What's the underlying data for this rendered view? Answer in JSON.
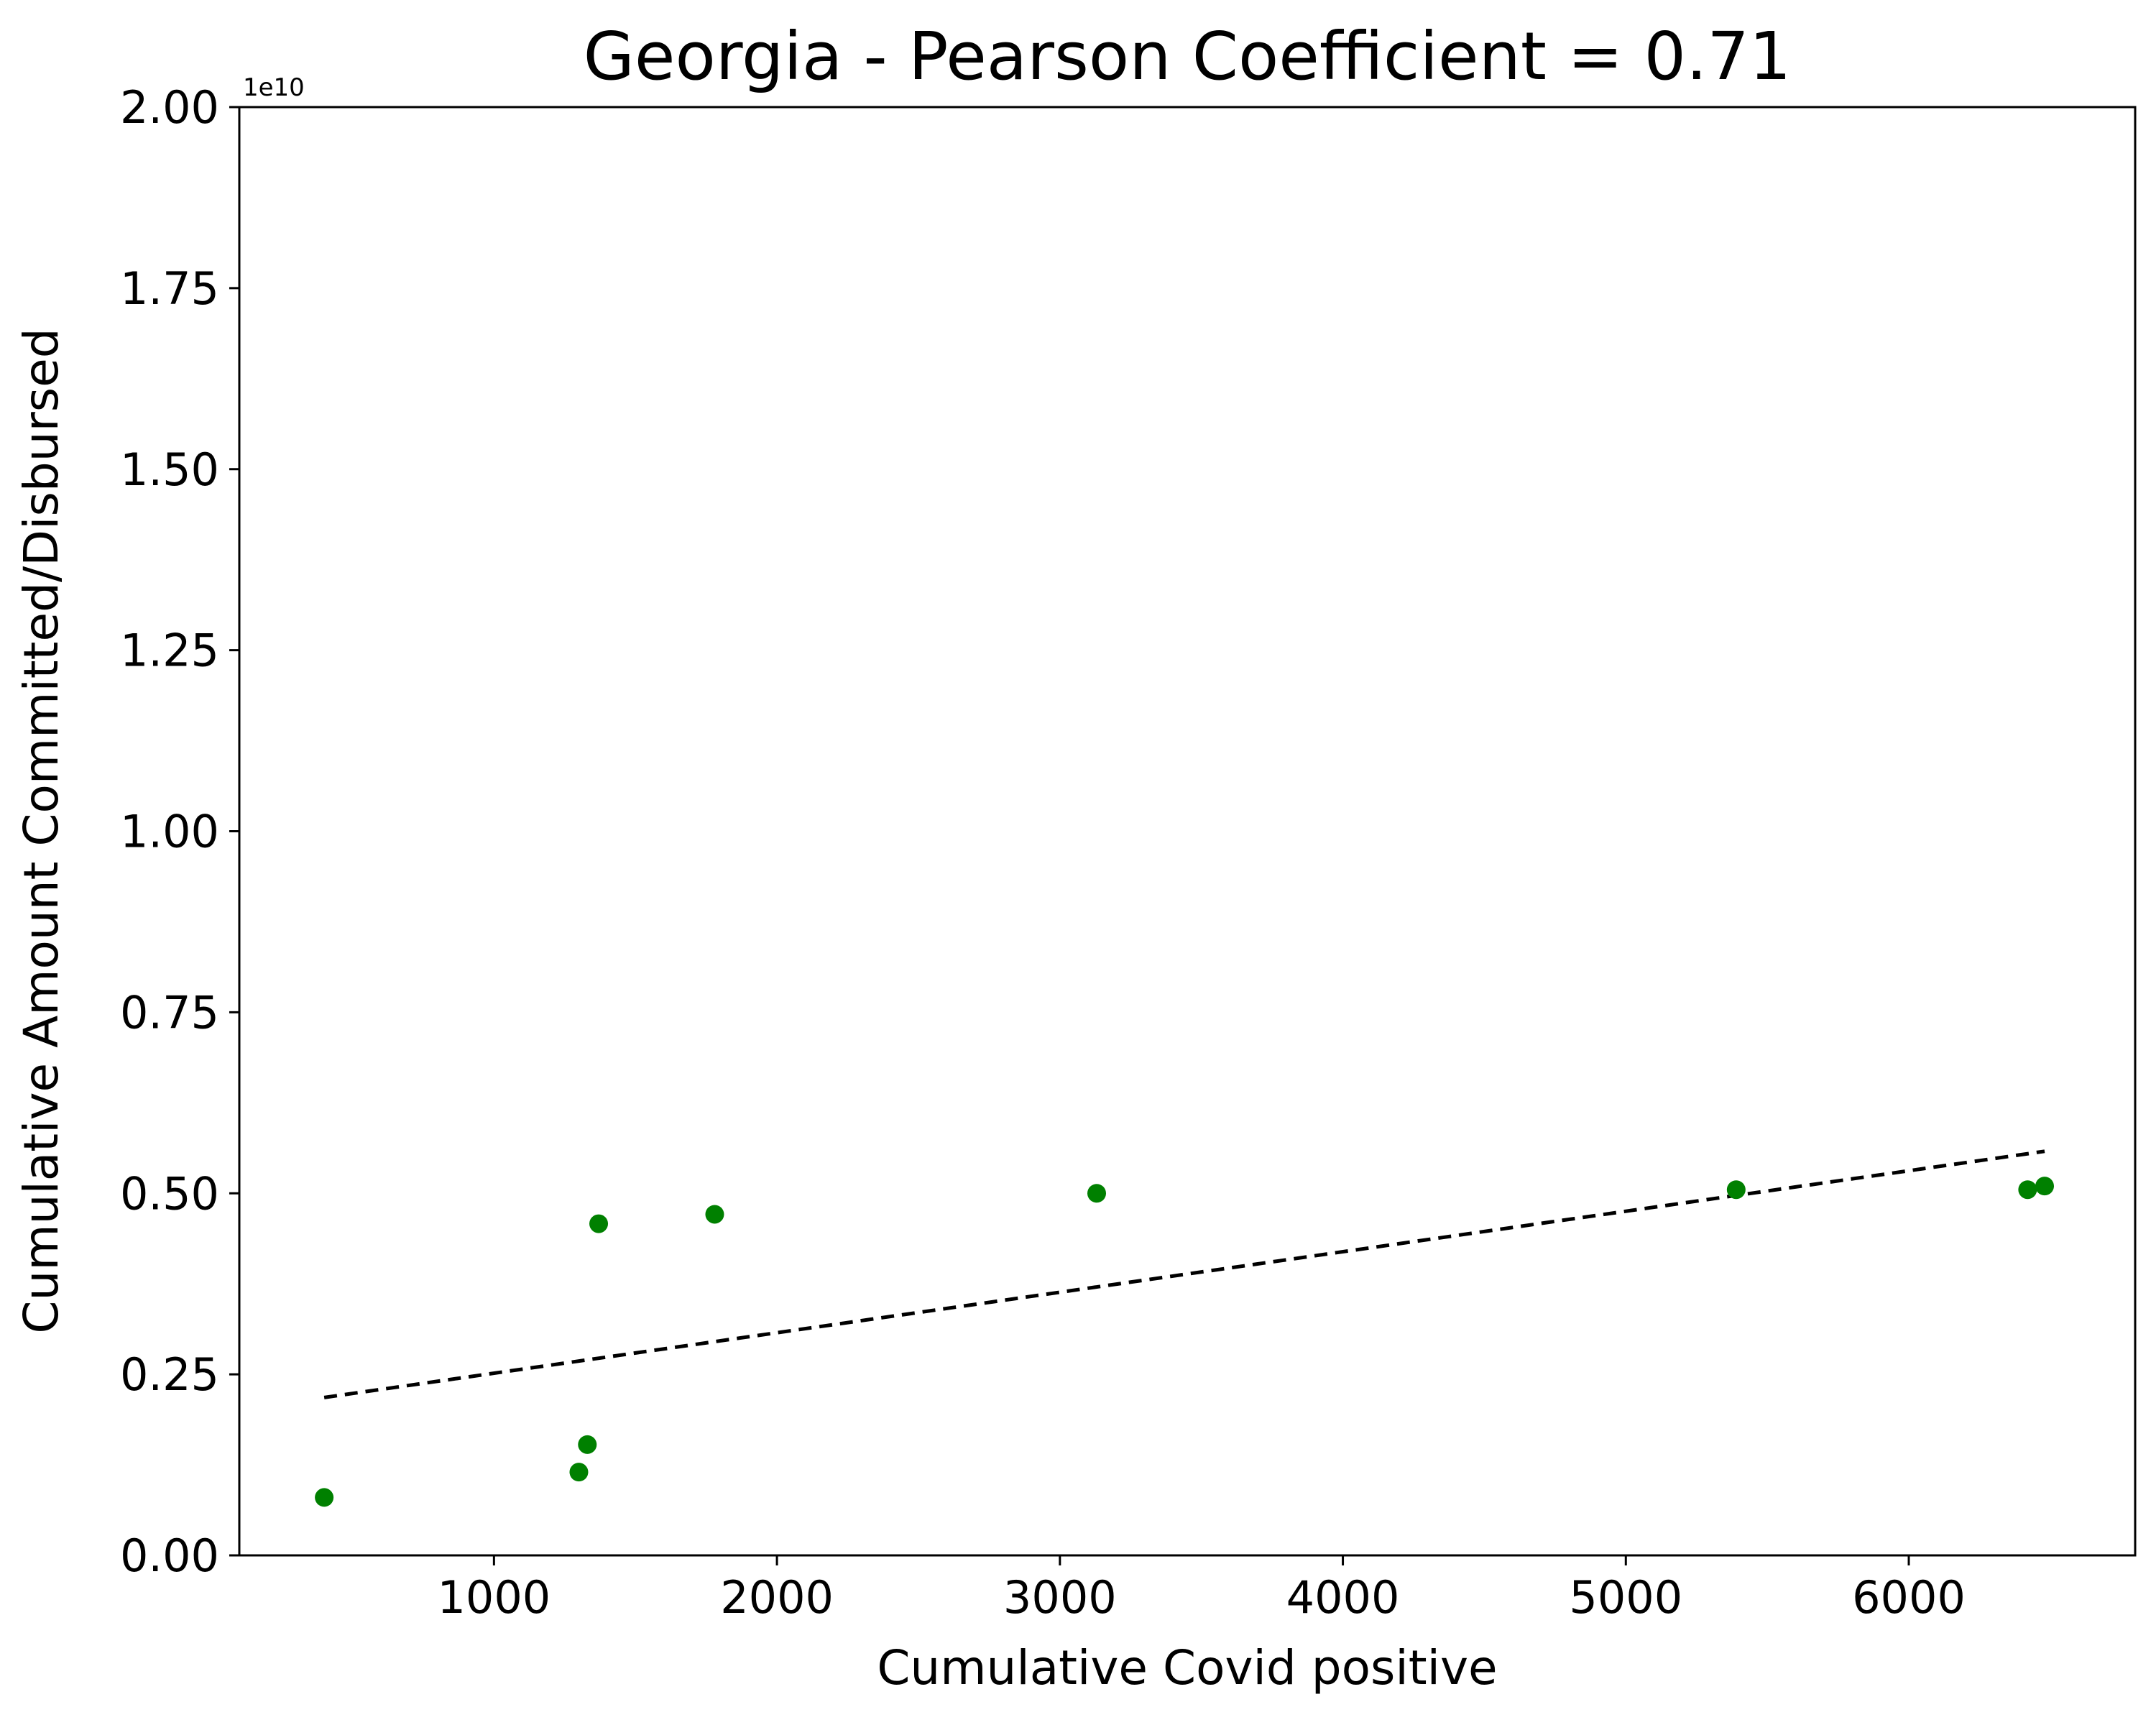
{
  "chart_data": {
    "type": "scatter",
    "title": "Georgia - Pearson Coefficient = 0.71",
    "xlabel": "Cumulative Covid positive",
    "ylabel": "Cumulative Amount Committed/Disbursed",
    "y_scale_label": "1e10",
    "xlim": [
      100,
      6800
    ],
    "ylim": [
      0,
      2.0
    ],
    "x_ticks": [
      1000,
      2000,
      3000,
      4000,
      5000,
      6000
    ],
    "x_tick_labels": [
      "1000",
      "2000",
      "3000",
      "4000",
      "5000",
      "6000"
    ],
    "y_ticks": [
      0,
      0.25,
      0.5,
      0.75,
      1.0,
      1.25,
      1.5,
      1.75,
      2.0
    ],
    "y_tick_labels": [
      "0.00",
      "0.25",
      "0.50",
      "0.75",
      "1.00",
      "1.25",
      "1.50",
      "1.75",
      "2.00"
    ],
    "grid": false,
    "point_color": "#008000",
    "trend_color": "#000000",
    "points": [
      {
        "x": 400,
        "y": 0.08
      },
      {
        "x": 1300,
        "y": 0.115
      },
      {
        "x": 1330,
        "y": 0.153
      },
      {
        "x": 1370,
        "y": 0.458
      },
      {
        "x": 1780,
        "y": 0.471
      },
      {
        "x": 3130,
        "y": 0.5
      },
      {
        "x": 5390,
        "y": 0.505
      },
      {
        "x": 6420,
        "y": 0.505
      },
      {
        "x": 6480,
        "y": 0.51
      }
    ],
    "trend_line": {
      "style": "dashed",
      "x": [
        400,
        6480
      ],
      "y": [
        0.218,
        0.558
      ]
    }
  }
}
